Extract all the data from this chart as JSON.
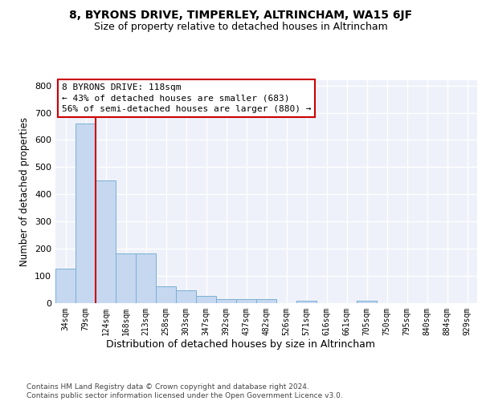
{
  "title": "8, BYRONS DRIVE, TIMPERLEY, ALTRINCHAM, WA15 6JF",
  "subtitle": "Size of property relative to detached houses in Altrincham",
  "xlabel": "Distribution of detached houses by size in Altrincham",
  "ylabel": "Number of detached properties",
  "bar_color": "#c5d8f0",
  "bar_edge_color": "#7aafd4",
  "annotation_line1": "8 BYRONS DRIVE: 118sqm",
  "annotation_line2": "← 43% of detached houses are smaller (683)",
  "annotation_line3": "56% of semi-detached houses are larger (880) →",
  "annotation_box_facecolor": "#ffffff",
  "annotation_box_edgecolor": "#cc0000",
  "vline_color": "#cc0000",
  "vline_x": 1.5,
  "categories": [
    "34sqm",
    "79sqm",
    "124sqm",
    "168sqm",
    "213sqm",
    "258sqm",
    "303sqm",
    "347sqm",
    "392sqm",
    "437sqm",
    "482sqm",
    "526sqm",
    "571sqm",
    "616sqm",
    "661sqm",
    "705sqm",
    "750sqm",
    "795sqm",
    "840sqm",
    "884sqm",
    "929sqm"
  ],
  "values": [
    125,
    660,
    450,
    183,
    183,
    60,
    45,
    25,
    13,
    13,
    12,
    0,
    8,
    0,
    0,
    8,
    0,
    0,
    0,
    0,
    0
  ],
  "ylim": [
    0,
    820
  ],
  "yticks": [
    0,
    100,
    200,
    300,
    400,
    500,
    600,
    700,
    800
  ],
  "plot_bg": "#eef1fa",
  "footer": "Contains HM Land Registry data © Crown copyright and database right 2024.\nContains public sector information licensed under the Open Government Licence v3.0."
}
